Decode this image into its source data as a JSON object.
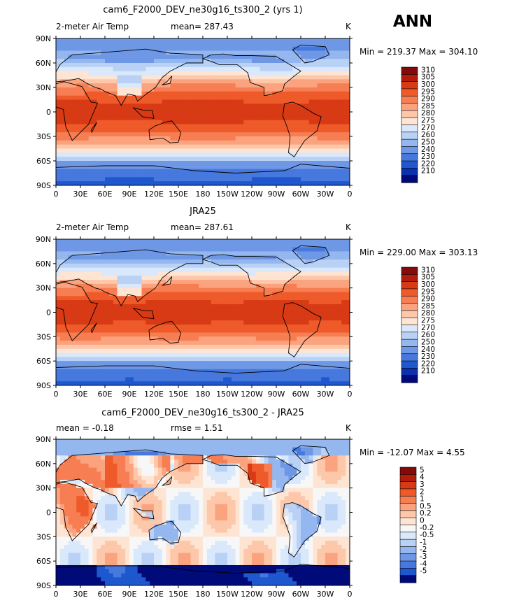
{
  "season": "ANN",
  "chart_data": [
    {
      "type": "heatmap",
      "title": "cam6_F2000_DEV_ne30g16_ts300_2 (yrs 1)",
      "variable": "2-meter Air Temp",
      "stat_left": "mean=  287.43",
      "units": "K",
      "minmax": "Min = 219.37 Max = 304.10",
      "min": 219.37,
      "max": 304.1,
      "mean": 287.43,
      "field": "model",
      "x_ticks": [
        "0",
        "30E",
        "60E",
        "90E",
        "120E",
        "150E",
        "180",
        "150W",
        "120W",
        "90W",
        "60W",
        "30W",
        "0"
      ],
      "y_ticks": [
        "90N",
        "60N",
        "30N",
        "0",
        "30S",
        "60S",
        "90S"
      ],
      "levels": [
        "310",
        "305",
        "300",
        "295",
        "290",
        "285",
        "280",
        "275",
        "270",
        "260",
        "250",
        "240",
        "230",
        "220",
        "210"
      ],
      "colors": [
        "#850a0a",
        "#b31c0a",
        "#d73a14",
        "#ee5a2a",
        "#f77e52",
        "#fba37f",
        "#fdc7aa",
        "#fee4d2",
        "#d9e8fb",
        "#b8d1f5",
        "#94b7ef",
        "#6e98e6",
        "#4678dd",
        "#1f57cf",
        "#0a30b0",
        "#000a78"
      ]
    },
    {
      "type": "heatmap",
      "title": "JRA25",
      "variable": "2-meter Air Temp",
      "stat_left": "mean=  287.61",
      "units": "K",
      "minmax": "Min = 229.00 Max = 303.13",
      "min": 229.0,
      "max": 303.13,
      "mean": 287.61,
      "field": "obs",
      "x_ticks": [
        "0",
        "30E",
        "60E",
        "90E",
        "120E",
        "150E",
        "180",
        "150W",
        "120W",
        "90W",
        "60W",
        "30W",
        "0"
      ],
      "y_ticks": [
        "90N",
        "60N",
        "30N",
        "0",
        "30S",
        "60S",
        "90S"
      ],
      "levels": [
        "310",
        "305",
        "300",
        "295",
        "290",
        "285",
        "280",
        "275",
        "270",
        "260",
        "250",
        "240",
        "230",
        "220",
        "210"
      ],
      "colors": [
        "#850a0a",
        "#b31c0a",
        "#d73a14",
        "#ee5a2a",
        "#f77e52",
        "#fba37f",
        "#fdc7aa",
        "#fee4d2",
        "#d9e8fb",
        "#b8d1f5",
        "#94b7ef",
        "#6e98e6",
        "#4678dd",
        "#1f57cf",
        "#0a30b0",
        "#000a78"
      ]
    },
    {
      "type": "heatmap",
      "title": "cam6_F2000_DEV_ne30g16_ts300_2 - JRA25",
      "stat_left": "mean =   -0.18",
      "stat_mid": "rmse =    1.51",
      "units": "K",
      "minmax": "Min = -12.07 Max =    4.55",
      "min": -12.07,
      "max": 4.55,
      "mean": -0.18,
      "rmse": 1.51,
      "field": "diff",
      "x_ticks": [
        "0",
        "30E",
        "60E",
        "90E",
        "120E",
        "150E",
        "180",
        "150W",
        "120W",
        "90W",
        "60W",
        "30W",
        "0"
      ],
      "y_ticks": [
        "90N",
        "60N",
        "30N",
        "0",
        "30S",
        "60S",
        "90S"
      ],
      "levels": [
        "5",
        "4",
        "3",
        "2",
        "1",
        "0.5",
        "0.2",
        "0",
        "-0.2",
        "-0.5",
        "-1",
        "-2",
        "-3",
        "-4",
        "-5"
      ],
      "colors": [
        "#850a0a",
        "#b31c0a",
        "#d73a14",
        "#ee5a2a",
        "#f77e52",
        "#fba37f",
        "#fdc7aa",
        "#fee4d2",
        "#f7f7f7",
        "#d9e8fb",
        "#b8d1f5",
        "#94b7ef",
        "#6e98e6",
        "#4678dd",
        "#1f57cf",
        "#000a78"
      ]
    }
  ]
}
